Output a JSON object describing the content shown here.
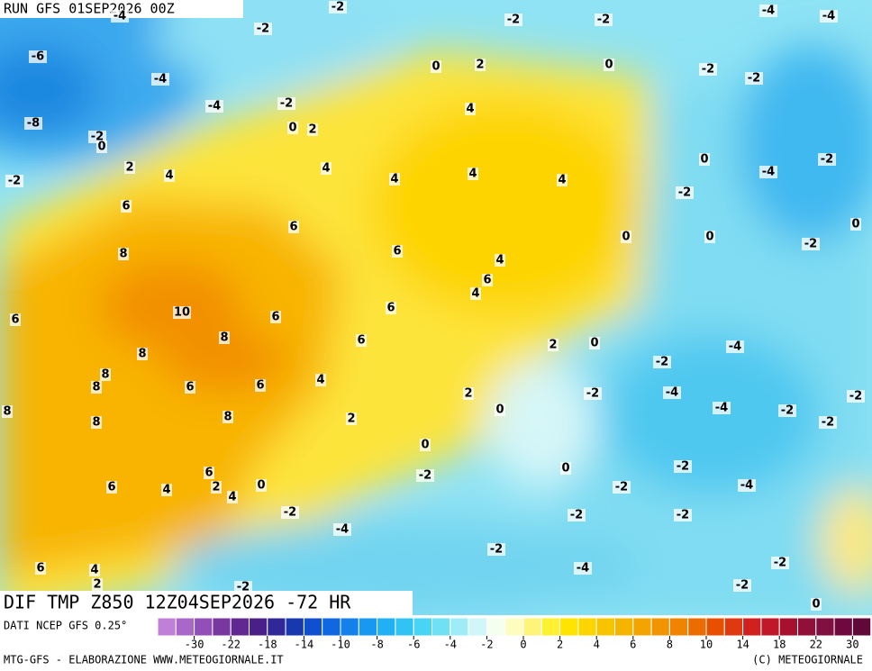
{
  "header": {
    "run": "RUN GFS 01SEP2026 00Z",
    "title": "DIF TMP Z850 12Z04SEP2026 -72 HR",
    "source": "DATI NCEP GFS 0.25°",
    "credit": "MTG-GFS - ELABORAZIONE WWW.METEOGIORNALE.IT",
    "copyright": "(C) METEOGIORNALE"
  },
  "map": {
    "labels": [
      -4,
      -2,
      -2,
      -2,
      -4,
      -4,
      -2,
      -6,
      -4,
      0,
      2,
      0,
      -2,
      -2,
      -4,
      -2,
      4,
      -8,
      0,
      2,
      -2,
      0,
      2,
      4,
      4,
      4,
      4,
      4,
      0,
      -4,
      -2,
      -2,
      -2,
      6,
      6,
      0,
      0,
      -2,
      0,
      8,
      6,
      4,
      6,
      4,
      10,
      6,
      6,
      6,
      8,
      6,
      2,
      0,
      -4,
      -2,
      8,
      8,
      8,
      6,
      6,
      4,
      -2,
      -4,
      -2,
      2,
      8,
      8,
      2,
      0,
      -4,
      -2,
      -2,
      8,
      0,
      0,
      -2,
      -2,
      6,
      6,
      4,
      2,
      4,
      0,
      -2,
      -4,
      -2,
      -2,
      -2,
      -4,
      -2,
      -4,
      -2,
      6,
      4,
      2,
      -2,
      -2,
      0
    ]
  },
  "colorbar": {
    "ticks": [
      -30,
      -22,
      -18,
      -14,
      -10,
      -8,
      -6,
      -4,
      -2,
      0,
      2,
      4,
      6,
      8,
      10,
      14,
      18,
      22,
      30
    ]
  }
}
